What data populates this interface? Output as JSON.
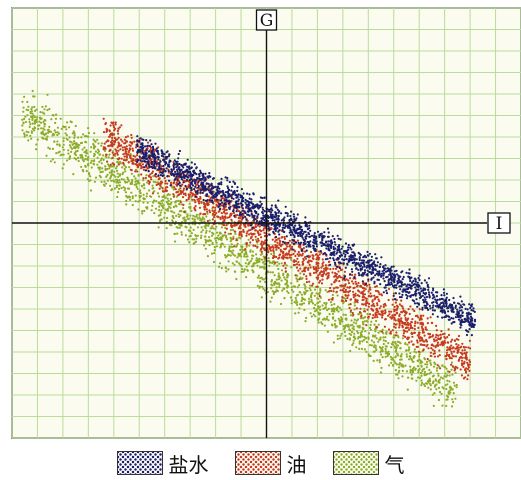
{
  "chart_data": {
    "type": "scatter",
    "title": "",
    "xlabel": "I",
    "ylabel": "G",
    "xlim": [
      -10,
      10
    ],
    "ylim": [
      -10,
      10
    ],
    "grid": true,
    "legend_position": "bottom",
    "series": [
      {
        "name": "盐水",
        "color": "#1b1e6b",
        "band": {
          "x_range": [
            -5.1,
            8.2
          ],
          "slope": -0.6,
          "intercept": 0.35,
          "width": 1.3
        }
      },
      {
        "name": "油",
        "color": "#c63a1e",
        "band": {
          "x_range": [
            -6.4,
            8.0
          ],
          "slope": -0.73,
          "intercept": -0.65,
          "width": 1.7
        }
      },
      {
        "name": "气",
        "color": "#8cac2a",
        "band": {
          "x_range": [
            -9.6,
            7.5
          ],
          "slope": -0.76,
          "intercept": -2.2,
          "width": 2.0
        }
      }
    ]
  }
}
